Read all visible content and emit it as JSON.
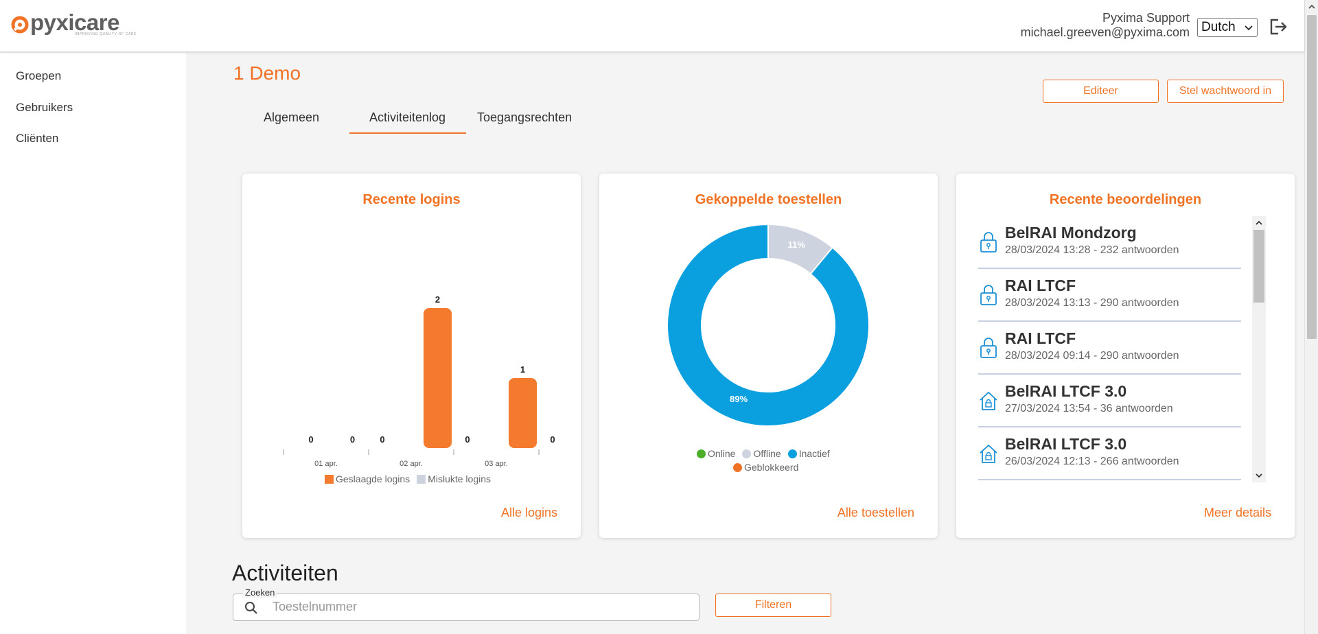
{
  "header": {
    "logo_text": "pyxicare",
    "logo_tagline": "IMPROVING QUALITY OF CARE",
    "user_name": "Pyxima Support",
    "user_email": "michael.greeven@pyxima.com",
    "language": "Dutch"
  },
  "sidebar": {
    "items": [
      {
        "label": "Groepen"
      },
      {
        "label": "Gebruikers"
      },
      {
        "label": "Cliënten"
      }
    ]
  },
  "main": {
    "title": "1 Demo",
    "edit_button": "Editeer",
    "password_button": "Stel wachtwoord in",
    "tabs": [
      {
        "label": "Algemeen",
        "active": false
      },
      {
        "label": "Activiteitenlog",
        "active": true
      },
      {
        "label": "Toegangsrechten",
        "active": false
      }
    ]
  },
  "logins_card": {
    "link": "Alle logins"
  },
  "devices_card": {
    "link": "Alle toestellen"
  },
  "assessments_card": {
    "title": "Recente beoordelingen",
    "link": "Meer details",
    "items": [
      {
        "title": "BelRAI Mondzorg",
        "subtitle": "28/03/2024 13:28 - 232 antwoorden",
        "icon": "lock-icon"
      },
      {
        "title": "RAI LTCF",
        "subtitle": "28/03/2024 13:13 - 290 antwoorden",
        "icon": "lock-icon"
      },
      {
        "title": "RAI LTCF",
        "subtitle": "28/03/2024 09:14 - 290 antwoorden",
        "icon": "lock-icon"
      },
      {
        "title": "BelRAI LTCF 3.0",
        "subtitle": "27/03/2024 13:54 - 36 antwoorden",
        "icon": "home-lock-icon"
      },
      {
        "title": "BelRAI LTCF 3.0",
        "subtitle": "26/03/2024 12:13 - 266 antwoorden",
        "icon": "home-lock-icon"
      }
    ]
  },
  "activities": {
    "title": "Activiteiten",
    "search_label": "Zoeken",
    "search_placeholder": "Toestelnummer",
    "filter_button": "Filteren"
  },
  "colors": {
    "accent": "#f07325",
    "bar_success": "#f47a2e",
    "bar_failed": "#cdd4df",
    "online": "#4caf2a",
    "offline": "#cdd4df",
    "inactive": "#0aa0e0",
    "blocked": "#f07325"
  },
  "chart_data": [
    {
      "type": "bar",
      "title": "Recente logins",
      "categories": [
        "01 apr.",
        "02 apr.",
        "03 apr."
      ],
      "series": [
        {
          "name": "Geslaagde logins",
          "values": [
            0,
            2,
            1
          ],
          "labels": [
            "0",
            "2",
            "1"
          ]
        },
        {
          "name": "Mislukte logins",
          "values": [
            0,
            0,
            0
          ],
          "labels": [
            "0",
            "0",
            "0"
          ]
        }
      ],
      "leading_label": "0",
      "ylim": [
        0,
        2
      ],
      "legend": "bottom"
    },
    {
      "type": "pie",
      "title": "Gekoppelde toestellen",
      "donut": true,
      "slices": [
        {
          "name": "Offline",
          "value": 11,
          "label": "11%"
        },
        {
          "name": "Inactief",
          "value": 89,
          "label": "89%"
        }
      ],
      "legend_entries": [
        "Online",
        "Offline",
        "Inactief",
        "Geblokkeerd"
      ],
      "legend": "bottom"
    }
  ]
}
